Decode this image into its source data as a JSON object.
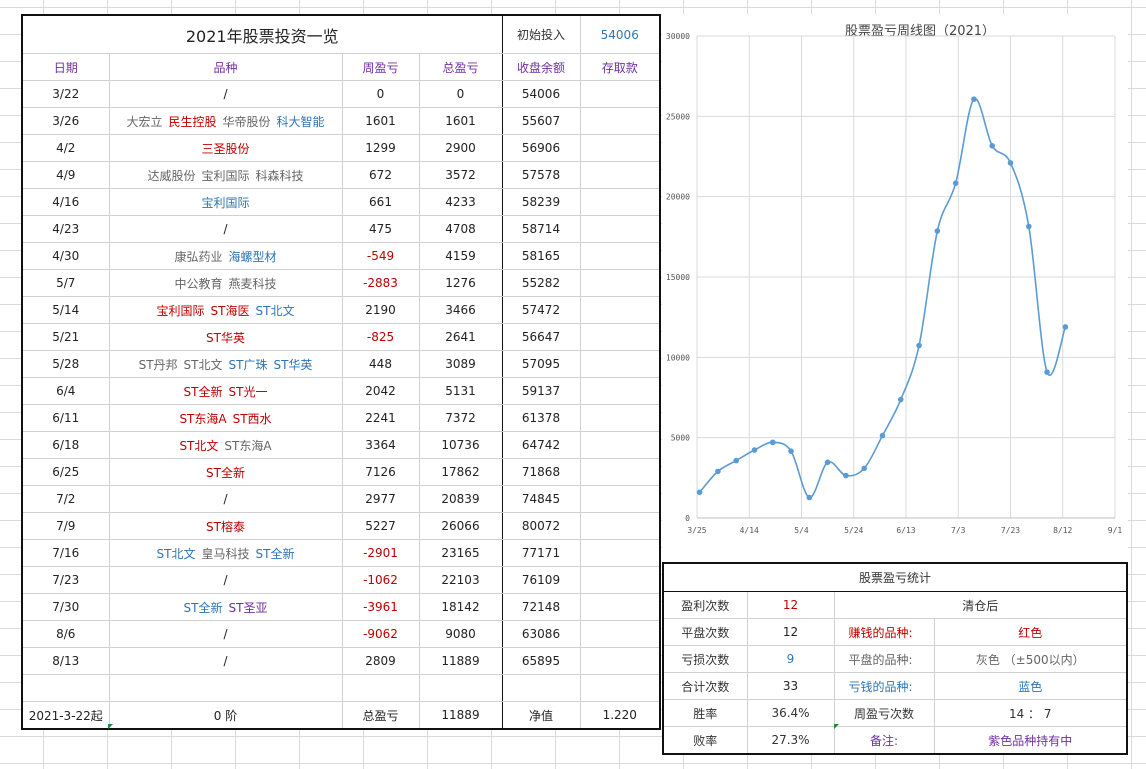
{
  "main": {
    "title": "2021年股票投资一览",
    "initial_label": "初始投入",
    "initial_value": "54006",
    "headers": {
      "date": "日期",
      "stocks": "品种",
      "weekly": "周盈亏",
      "total": "总盈亏",
      "balance": "收盘余额",
      "deposit": "存取款"
    },
    "rows": [
      {
        "date": "3/22",
        "stocks": [
          {
            "name": "/",
            "color": "dark"
          }
        ],
        "weekly": "0",
        "weekly_color": "dark",
        "total": "0",
        "balance": "54006"
      },
      {
        "date": "3/26",
        "stocks": [
          {
            "name": "大宏立",
            "color": "gray"
          },
          {
            "name": "民生控股",
            "color": "red"
          },
          {
            "name": "华帝股份",
            "color": "gray"
          },
          {
            "name": "科大智能",
            "color": "blue"
          }
        ],
        "weekly": "1601",
        "weekly_color": "dark",
        "total": "1601",
        "balance": "55607"
      },
      {
        "date": "4/2",
        "stocks": [
          {
            "name": "三圣股份",
            "color": "red"
          }
        ],
        "weekly": "1299",
        "weekly_color": "dark",
        "total": "2900",
        "balance": "56906"
      },
      {
        "date": "4/9",
        "stocks": [
          {
            "name": "达威股份",
            "color": "gray"
          },
          {
            "name": "宝利国际",
            "color": "gray"
          },
          {
            "name": "科森科技",
            "color": "gray"
          }
        ],
        "weekly": "672",
        "weekly_color": "dark",
        "total": "3572",
        "balance": "57578"
      },
      {
        "date": "4/16",
        "stocks": [
          {
            "name": "宝利国际",
            "color": "blue"
          }
        ],
        "weekly": "661",
        "weekly_color": "dark",
        "total": "4233",
        "balance": "58239"
      },
      {
        "date": "4/23",
        "stocks": [
          {
            "name": "/",
            "color": "dark"
          }
        ],
        "weekly": "475",
        "weekly_color": "dark",
        "total": "4708",
        "balance": "58714"
      },
      {
        "date": "4/30",
        "stocks": [
          {
            "name": "康弘药业",
            "color": "gray"
          },
          {
            "name": "海螺型材",
            "color": "blue"
          }
        ],
        "weekly": "-549",
        "weekly_color": "red",
        "total": "4159",
        "balance": "58165"
      },
      {
        "date": "5/7",
        "stocks": [
          {
            "name": "中公教育",
            "color": "gray"
          },
          {
            "name": "燕麦科技",
            "color": "gray"
          }
        ],
        "weekly": "-2883",
        "weekly_color": "red",
        "total": "1276",
        "balance": "55282"
      },
      {
        "date": "5/14",
        "stocks": [
          {
            "name": "宝利国际",
            "color": "red"
          },
          {
            "name": "ST海医",
            "color": "red"
          },
          {
            "name": "ST北文",
            "color": "blue"
          }
        ],
        "weekly": "2190",
        "weekly_color": "dark",
        "total": "3466",
        "balance": "57472"
      },
      {
        "date": "5/21",
        "stocks": [
          {
            "name": "ST华英",
            "color": "red"
          }
        ],
        "weekly": "-825",
        "weekly_color": "red",
        "total": "2641",
        "balance": "56647"
      },
      {
        "date": "5/28",
        "stocks": [
          {
            "name": "ST丹邦",
            "color": "gray"
          },
          {
            "name": "ST北文",
            "color": "gray"
          },
          {
            "name": "ST广珠",
            "color": "blue"
          },
          {
            "name": "ST华英",
            "color": "blue"
          }
        ],
        "weekly": "448",
        "weekly_color": "dark",
        "total": "3089",
        "balance": "57095"
      },
      {
        "date": "6/4",
        "stocks": [
          {
            "name": "ST全新",
            "color": "red"
          },
          {
            "name": "ST光一",
            "color": "red"
          }
        ],
        "weekly": "2042",
        "weekly_color": "dark",
        "total": "5131",
        "balance": "59137"
      },
      {
        "date": "6/11",
        "stocks": [
          {
            "name": "ST东海A",
            "color": "red"
          },
          {
            "name": "ST西水",
            "color": "red"
          }
        ],
        "weekly": "2241",
        "weekly_color": "dark",
        "total": "7372",
        "balance": "61378"
      },
      {
        "date": "6/18",
        "stocks": [
          {
            "name": "ST北文",
            "color": "red"
          },
          {
            "name": "ST东海A",
            "color": "gray"
          }
        ],
        "weekly": "3364",
        "weekly_color": "dark",
        "total": "10736",
        "balance": "64742"
      },
      {
        "date": "6/25",
        "stocks": [
          {
            "name": "ST全新",
            "color": "red"
          }
        ],
        "weekly": "7126",
        "weekly_color": "dark",
        "total": "17862",
        "balance": "71868"
      },
      {
        "date": "7/2",
        "stocks": [
          {
            "name": "/",
            "color": "dark"
          }
        ],
        "weekly": "2977",
        "weekly_color": "dark",
        "total": "20839",
        "balance": "74845"
      },
      {
        "date": "7/9",
        "stocks": [
          {
            "name": "ST榕泰",
            "color": "red"
          }
        ],
        "weekly": "5227",
        "weekly_color": "dark",
        "total": "26066",
        "balance": "80072"
      },
      {
        "date": "7/16",
        "stocks": [
          {
            "name": "ST北文",
            "color": "blue"
          },
          {
            "name": "皇马科技",
            "color": "gray"
          },
          {
            "name": "ST全新",
            "color": "blue"
          }
        ],
        "weekly": "-2901",
        "weekly_color": "red",
        "total": "23165",
        "balance": "77171"
      },
      {
        "date": "7/23",
        "stocks": [
          {
            "name": "/",
            "color": "dark"
          }
        ],
        "weekly": "-1062",
        "weekly_color": "red",
        "total": "22103",
        "balance": "76109"
      },
      {
        "date": "7/30",
        "stocks": [
          {
            "name": "ST全新",
            "color": "blue"
          },
          {
            "name": "ST圣亚",
            "color": "purple"
          }
        ],
        "weekly": "-3961",
        "weekly_color": "red",
        "total": "18142",
        "balance": "72148"
      },
      {
        "date": "8/6",
        "stocks": [
          {
            "name": "/",
            "color": "dark"
          }
        ],
        "weekly": "-9062",
        "weekly_color": "red",
        "total": "9080",
        "balance": "63086"
      },
      {
        "date": "8/13",
        "stocks": [
          {
            "name": "/",
            "color": "dark"
          }
        ],
        "weekly": "2809",
        "weekly_color": "dark",
        "total": "11889",
        "balance": "65895"
      }
    ],
    "footer": {
      "start": "2021-3-22起",
      "stage": "0 阶",
      "total_label": "总盈亏",
      "total_value": "11889",
      "net_label": "净值",
      "net_value": "1.220"
    }
  },
  "chart_data": {
    "type": "line",
    "title": "股票盈亏周线图（2021）",
    "x": [
      "3/26",
      "4/2",
      "4/9",
      "4/16",
      "4/23",
      "4/30",
      "5/7",
      "5/14",
      "5/21",
      "5/28",
      "6/4",
      "6/11",
      "6/18",
      "6/25",
      "7/2",
      "7/9",
      "7/16",
      "7/23",
      "7/30",
      "8/6",
      "8/13"
    ],
    "x_serial": [
      44281,
      44288,
      44295,
      44302,
      44309,
      44316,
      44323,
      44330,
      44337,
      44344,
      44351,
      44358,
      44365,
      44372,
      44379,
      44386,
      44393,
      44400,
      44407,
      44414,
      44421
    ],
    "series": [
      {
        "values": [
          1601,
          2900,
          3572,
          4233,
          4708,
          4159,
          1276,
          3466,
          2641,
          3089,
          5131,
          7372,
          10736,
          17862,
          20839,
          26066,
          23165,
          22103,
          18142,
          9080,
          11889
        ]
      }
    ],
    "x_ticks": [
      "3/25",
      "4/14",
      "5/4",
      "5/24",
      "6/13",
      "7/3",
      "7/23",
      "8/12",
      "9/1"
    ],
    "x_tick_serial": [
      44280,
      44300,
      44320,
      44340,
      44360,
      44380,
      44400,
      44420,
      44440
    ],
    "y_ticks": [
      0,
      5000,
      10000,
      15000,
      20000,
      25000,
      30000
    ],
    "ylim": [
      0,
      30000
    ],
    "xlim": [
      44280,
      44440
    ],
    "line_color": "#5b9bd5",
    "grid": true
  },
  "stats": {
    "title": "股票盈亏统计",
    "rows": [
      {
        "label": "盈利次数",
        "value": "12",
        "value_color": "red"
      },
      {
        "label": "平盘次数",
        "value": "12",
        "value_color": "dark"
      },
      {
        "label": "亏损次数",
        "value": "9",
        "value_color": "blue"
      },
      {
        "label": "合计次数",
        "value": "33",
        "value_color": "dark"
      }
    ],
    "right_header": "清仓后",
    "legend": [
      {
        "label": "赚钱的品种:",
        "value": "红色",
        "color": "red"
      },
      {
        "label": "平盘的品种:",
        "value": "灰色 （±500以内）",
        "color": "gray"
      },
      {
        "label": "亏钱的品种:",
        "value": "蓝色",
        "color": "blue"
      }
    ],
    "win_label": "胜率",
    "win_value": "36.4%",
    "lose_label": "败率",
    "lose_value": "27.3%",
    "ratio_label": "周盈亏次数",
    "ratio_value": "14 ： 7",
    "note_label": "备注:",
    "note_value": "紫色品种持有中"
  }
}
